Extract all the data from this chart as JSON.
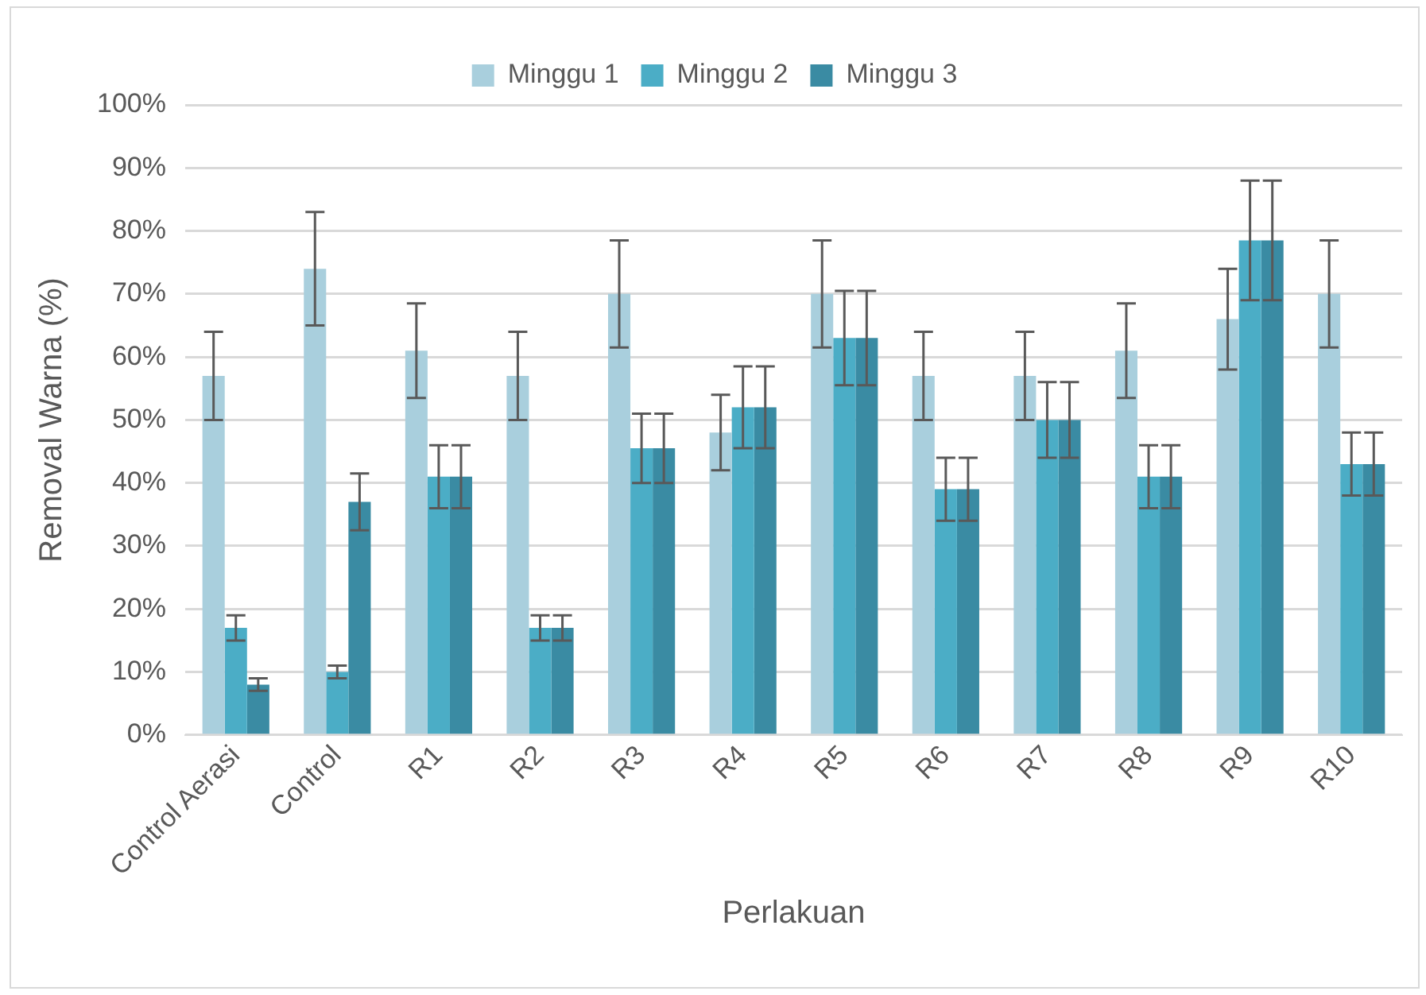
{
  "chart_data": {
    "type": "bar",
    "xlabel": "Perlakuan",
    "ylabel": "Removal Warna (%)",
    "categories": [
      "Control Aerasi",
      "Control",
      "R1",
      "R2",
      "R3",
      "R4",
      "R5",
      "R6",
      "R7",
      "R8",
      "R9",
      "R10"
    ],
    "series": [
      {
        "name": "Minggu 1",
        "color": "#a9cfdd",
        "values": [
          57,
          74,
          61,
          57,
          70,
          48,
          70,
          57,
          57,
          61,
          66,
          70
        ],
        "errors": [
          7,
          9,
          7.5,
          7,
          8.5,
          6,
          8.5,
          7,
          7,
          7.5,
          8,
          8.5
        ]
      },
      {
        "name": "Minggu 2",
        "color": "#4badc6",
        "values": [
          17,
          10,
          41,
          17,
          45.5,
          52,
          63,
          39,
          50,
          41,
          78.5,
          43
        ],
        "errors": [
          2,
          1,
          5,
          2,
          5.5,
          6.5,
          7.5,
          5,
          6,
          5,
          9.5,
          5
        ]
      },
      {
        "name": "Minggu 3",
        "color": "#3a8ba3",
        "values": [
          8,
          37,
          41,
          17,
          45.5,
          52,
          63,
          39,
          50,
          41,
          78.5,
          43
        ],
        "errors": [
          1,
          4.5,
          5,
          2,
          5.5,
          6.5,
          7.5,
          5,
          6,
          5,
          9.5,
          5
        ]
      }
    ],
    "ylim": [
      0,
      100
    ],
    "yticks": [
      {
        "value": 0,
        "label": "0%"
      },
      {
        "value": 10,
        "label": "10%"
      },
      {
        "value": 20,
        "label": "20%"
      },
      {
        "value": 30,
        "label": "30%"
      },
      {
        "value": 40,
        "label": "40%"
      },
      {
        "value": 50,
        "label": "50%"
      },
      {
        "value": 60,
        "label": "60%"
      },
      {
        "value": 70,
        "label": "70%"
      },
      {
        "value": 80,
        "label": "80%"
      },
      {
        "value": 90,
        "label": "90%"
      },
      {
        "value": 100,
        "label": "100%"
      }
    ],
    "grid": "y",
    "legend": "top"
  }
}
